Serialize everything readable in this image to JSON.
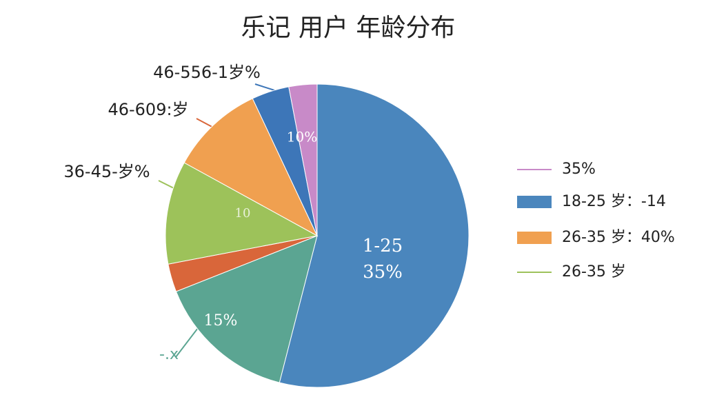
{
  "chart_data": {
    "type": "pie",
    "title": "乐记 用户 年龄分布",
    "categories": [
      null,
      null,
      null,
      null,
      null,
      null,
      null
    ],
    "values": [
      54,
      15,
      3,
      11,
      10,
      4,
      3
    ],
    "colors": [
      "#4a86bd",
      "#5ba592",
      "#d9663a",
      "#9dc25a",
      "#f0a050",
      "#3d76b8",
      "#c88ac8"
    ],
    "annotations": [
      "46-556-1岁%",
      "46-609:岁",
      "36-45-岁%",
      "1-25",
      "35%",
      "15%",
      "10%",
      "10",
      "-.x"
    ],
    "legend": [
      {
        "label": "35%",
        "color": "#c88ac8",
        "marker": "line"
      },
      {
        "label": "18-25 岁：-14",
        "color": "#4a86bd",
        "marker": "bar"
      },
      {
        "label": "26-35 岁：40%",
        "color": "#f0a050",
        "marker": "bar"
      },
      {
        "label": "26-35 岁",
        "color": "#9dc25a",
        "marker": "line"
      }
    ]
  }
}
